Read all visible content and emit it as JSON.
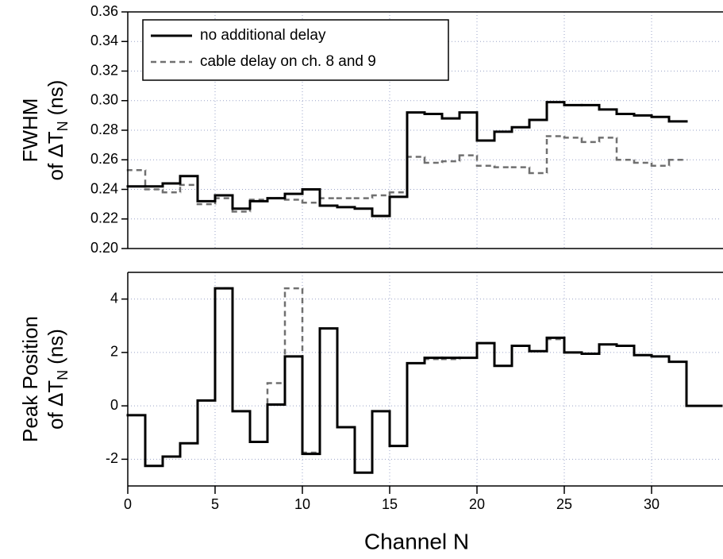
{
  "chart_data": [
    {
      "type": "step",
      "ylabel": {
        "line1": "FWHM",
        "line2": "of ΔT",
        "sub": "N",
        "unit": "(ns)"
      },
      "x": [
        0,
        1,
        2,
        3,
        4,
        5,
        6,
        7,
        8,
        9,
        10,
        11,
        12,
        13,
        14,
        15,
        16,
        17,
        18,
        19,
        20,
        21,
        22,
        23,
        24,
        25,
        26,
        27,
        28,
        29,
        30,
        31,
        32
      ],
      "xlim": [
        0,
        34
      ],
      "ylim": [
        0.2,
        0.36
      ],
      "yticks": [
        {
          "value": 0.2,
          "label": "0.20"
        },
        0.22,
        0.24,
        0.26,
        0.28,
        {
          "value": 0.3,
          "label": "0.30"
        },
        0.32,
        0.34,
        0.36
      ],
      "grid": true,
      "legend": "top-left",
      "series": [
        {
          "name": "no additional delay",
          "color": "#000000",
          "style": "solid",
          "values": [
            0.242,
            0.242,
            0.244,
            0.249,
            0.232,
            0.236,
            0.227,
            0.232,
            0.234,
            0.237,
            0.24,
            0.229,
            0.228,
            0.227,
            0.222,
            0.235,
            0.292,
            0.291,
            0.288,
            0.292,
            0.273,
            0.279,
            0.282,
            0.287,
            0.299,
            0.297,
            0.297,
            0.294,
            0.291,
            0.29,
            0.289,
            0.286,
            null
          ]
        },
        {
          "name": "cable delay on ch. 8 and 9",
          "color": "#707070",
          "style": "dashed",
          "values": [
            0.253,
            0.24,
            0.238,
            0.243,
            0.23,
            0.234,
            0.225,
            0.233,
            0.234,
            0.233,
            0.231,
            0.234,
            0.234,
            0.234,
            0.236,
            0.238,
            0.262,
            0.258,
            0.259,
            0.263,
            0.256,
            0.255,
            0.255,
            0.251,
            0.276,
            0.275,
            0.272,
            0.275,
            0.26,
            0.258,
            0.256,
            0.26,
            null
          ]
        }
      ]
    },
    {
      "type": "step",
      "ylabel": {
        "line1": "Peak Position",
        "line2": "of ΔT",
        "sub": "N",
        "unit": "(ns)"
      },
      "xlabel": "Channel N",
      "x": [
        0,
        1,
        2,
        3,
        4,
        5,
        6,
        7,
        8,
        9,
        10,
        11,
        12,
        13,
        14,
        15,
        16,
        17,
        18,
        19,
        20,
        21,
        22,
        23,
        24,
        25,
        26,
        27,
        28,
        29,
        30,
        31,
        32
      ],
      "xlim": [
        0,
        34
      ],
      "xticks": [
        0,
        5,
        10,
        15,
        20,
        25,
        30
      ],
      "ylim": [
        -3,
        5
      ],
      "yticks": [
        -2,
        0,
        2,
        4
      ],
      "grid": true,
      "series": [
        {
          "name": "no additional delay",
          "color": "#000000",
          "style": "solid",
          "values": [
            -0.35,
            -2.25,
            -1.9,
            -1.4,
            0.2,
            4.4,
            -0.2,
            -1.35,
            0.05,
            1.85,
            -1.8,
            2.9,
            -0.8,
            -2.5,
            -0.2,
            -1.5,
            1.6,
            1.8,
            1.8,
            1.8,
            2.35,
            1.5,
            2.25,
            2.05,
            2.55,
            2.0,
            1.95,
            2.3,
            2.25,
            1.9,
            1.85,
            1.65,
            0
          ]
        },
        {
          "name": "cable delay on ch. 8 and 9",
          "color": "#707070",
          "style": "dashed",
          "values": [
            -0.35,
            -2.25,
            -1.9,
            -1.4,
            0.2,
            4.4,
            -0.2,
            -1.35,
            0.85,
            4.4,
            -1.75,
            2.9,
            -0.8,
            -2.5,
            -0.2,
            -1.5,
            1.6,
            1.75,
            1.75,
            1.8,
            2.35,
            1.5,
            2.25,
            2.05,
            2.5,
            2.0,
            1.95,
            2.3,
            2.25,
            1.9,
            1.85,
            1.65,
            null
          ]
        }
      ]
    }
  ]
}
